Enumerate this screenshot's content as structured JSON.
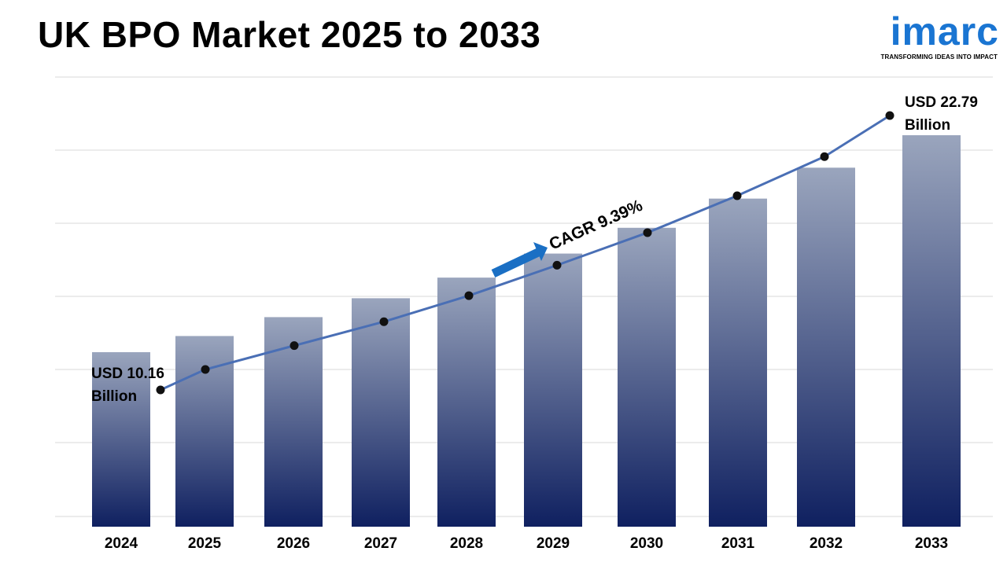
{
  "header": {
    "title": "UK BPO Market 2025 to 2033"
  },
  "logo": {
    "wordmark": "imarc",
    "tagline": "TRANSFORMING IDEAS INTO IMPACT",
    "color": "#1a75d2"
  },
  "chart_data": {
    "type": "bar",
    "title": "UK BPO Market 2025 to 2033",
    "xlabel": "",
    "ylabel": "",
    "categories": [
      "2024",
      "2025",
      "2026",
      "2027",
      "2028",
      "2029",
      "2030",
      "2031",
      "2032",
      "2033"
    ],
    "series": [
      {
        "values": [
          10.16,
          11.1,
          12.2,
          13.3,
          14.5,
          15.9,
          17.4,
          19.1,
          20.9,
          22.79
        ]
      }
    ],
    "trend_line": {
      "values": [
        10.16,
        11.1,
        12.2,
        13.3,
        14.5,
        15.9,
        17.4,
        19.1,
        20.9,
        22.79
      ]
    },
    "annotations": {
      "start_label_line1": "USD 10.16",
      "start_label_line2": "Billion",
      "end_label_line1": "USD 22.79",
      "end_label_line2": "Billion",
      "cagr_label": "CAGR 9.39%"
    },
    "ylim": [
      0,
      25
    ],
    "grid": true,
    "legend": "none",
    "colors": {
      "bar_top": "#9aa5bd",
      "bar_bottom": "#0f2060",
      "line": "#4a6fb5",
      "marker": "#111111",
      "arrow": "#1a6fc4",
      "grid": "#d9d9d9"
    }
  }
}
